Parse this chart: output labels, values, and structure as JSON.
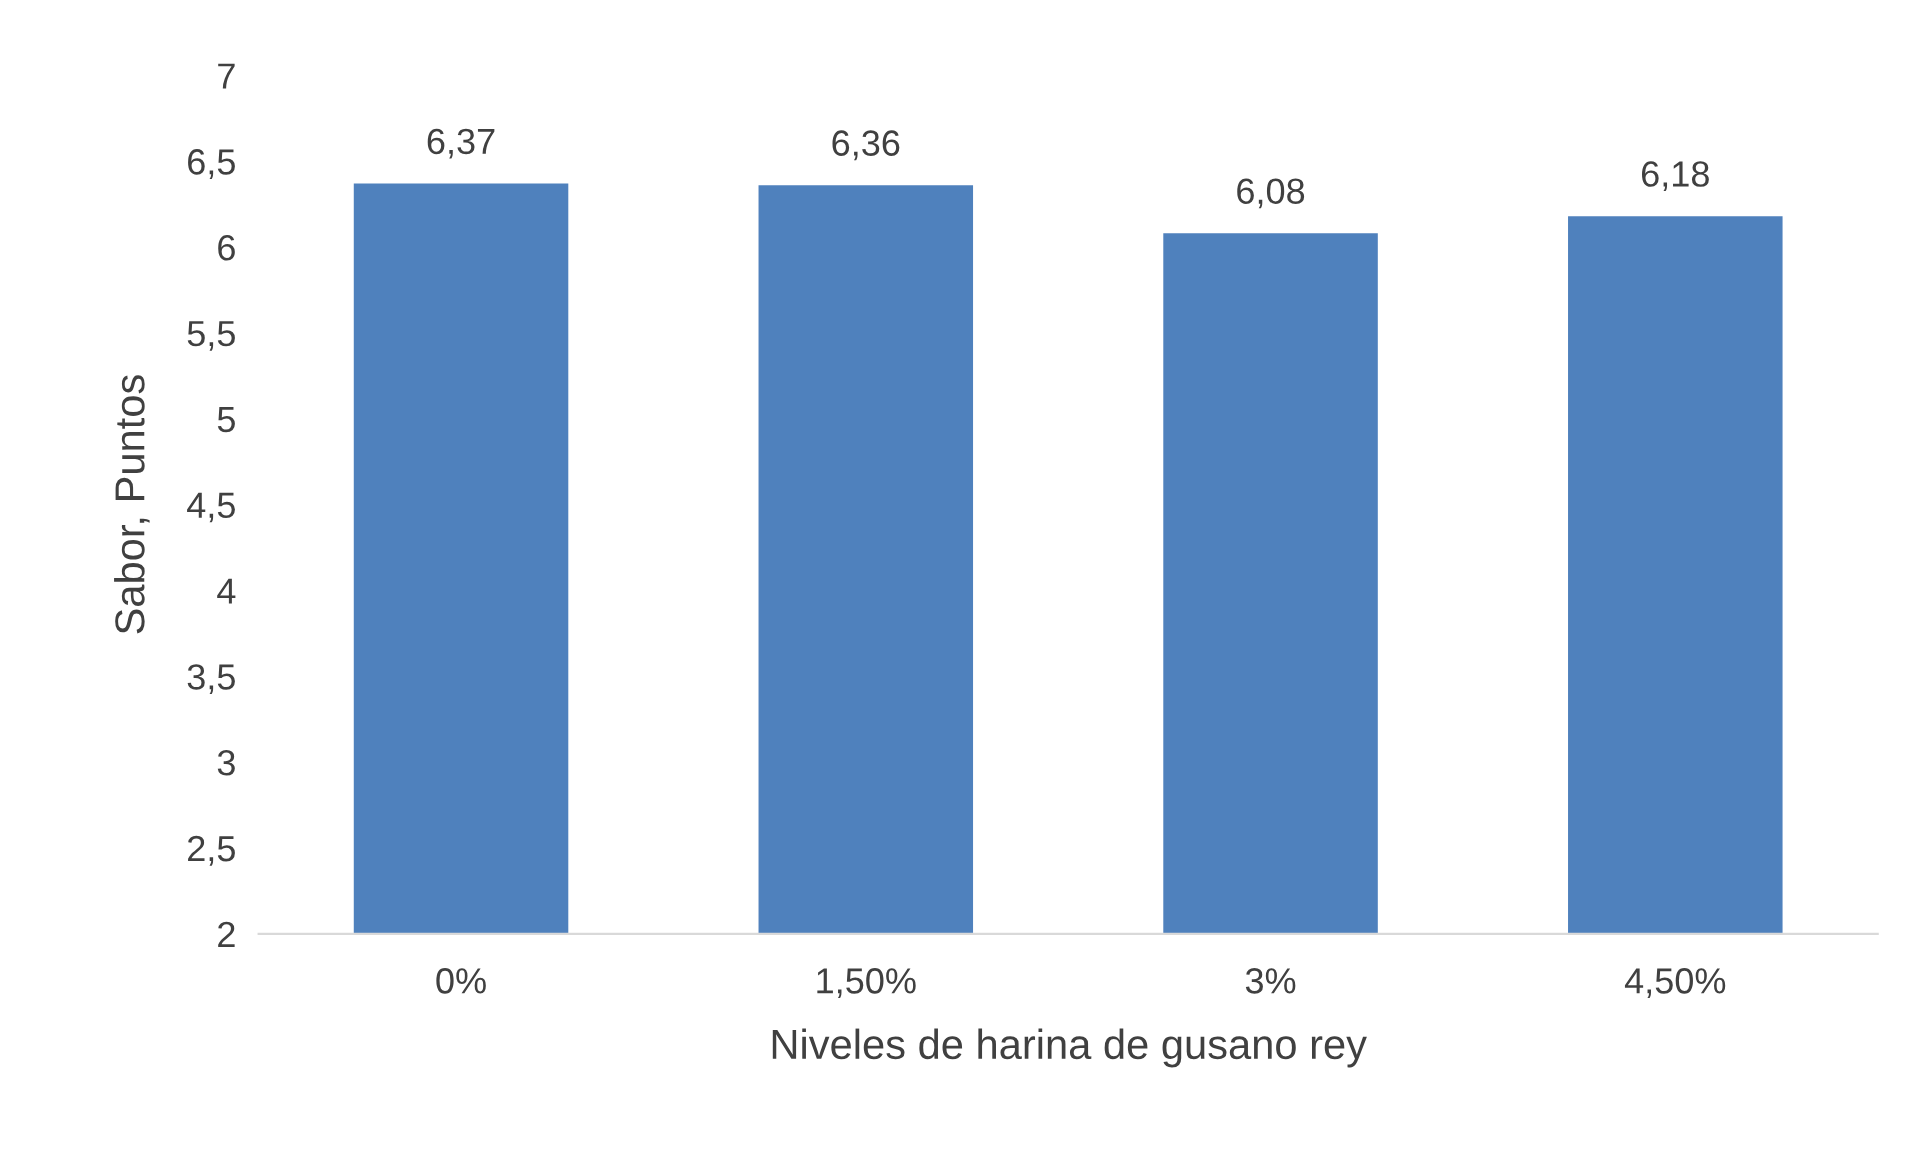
{
  "chart_data": {
    "type": "bar",
    "xlabel": "Niveles de harina de gusano rey",
    "ylabel": "Sabor, Puntos",
    "categories": [
      "0%",
      "1,50%",
      "3%",
      "4,50%"
    ],
    "values": [
      6.37,
      6.36,
      6.08,
      6.18
    ],
    "value_labels": [
      "6,37",
      "6,36",
      "6,08",
      "6,18"
    ],
    "color": "#4f81bd",
    "ylim": [
      2,
      7
    ],
    "yticks": [
      2,
      {
        "value": 2.5,
        "label": "2,5"
      },
      3,
      {
        "value": 3.5,
        "label": "3,5"
      },
      4,
      {
        "value": 4.5,
        "label": "4,5"
      },
      5,
      {
        "value": 5.5,
        "label": "5,5"
      },
      6,
      {
        "value": 6.5,
        "label": "6,5"
      },
      7
    ],
    "grid": false
  }
}
